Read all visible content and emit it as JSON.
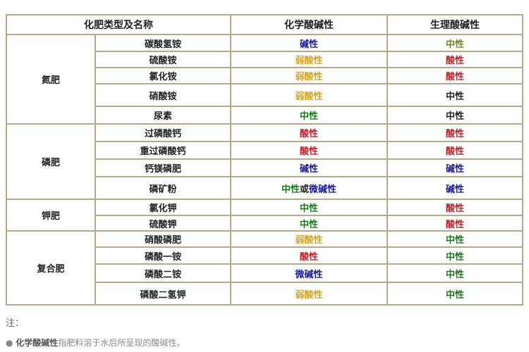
{
  "headers": [
    "化肥类型及名称",
    "化学酸碱性",
    "生理酸碱性"
  ],
  "groups": [
    {
      "category": "氮肥",
      "rows": [
        {
          "name": "碳酸氢铵",
          "chem": "碱性",
          "chem_color": "blue",
          "phys": "中性",
          "phys_color": "olive"
        },
        {
          "name": "硫酸铵",
          "chem": "弱酸性",
          "chem_color": "gold",
          "phys": "酸性",
          "phys_color": "red"
        },
        {
          "name": "氯化铵",
          "chem": "弱酸性",
          "chem_color": "gold",
          "phys": "酸性",
          "phys_color": "red"
        },
        {
          "name": "硝酸铵",
          "chem": "弱酸性",
          "chem_color": "gold",
          "phys": "中性",
          "phys_color": "black"
        },
        {
          "name": "尿素",
          "chem": "中性",
          "chem_color": "green",
          "phys": "中性",
          "phys_color": "black"
        }
      ]
    },
    {
      "category": "磷肥",
      "rows": [
        {
          "name": "过磷酸钙",
          "chem": "酸性",
          "chem_color": "red",
          "phys": "酸性",
          "phys_color": "red"
        },
        {
          "name": "重过磷酸钙",
          "chem": "酸性",
          "chem_color": "red",
          "phys": "酸性",
          "phys_color": "red"
        },
        {
          "name": "钙镁磷肥",
          "chem": "碱性",
          "chem_color": "blue",
          "phys": "碱性",
          "phys_color": "blue"
        },
        {
          "name": "磷矿粉",
          "chem": "中性",
          "chem_color": "green",
          "chem_suffix": "或",
          "chem_extra": "微碱性",
          "chem_extra_color": "blue",
          "phys": "碱性",
          "phys_color": "blue"
        }
      ]
    },
    {
      "category": "钾肥",
      "rows": [
        {
          "name": "氯化钾",
          "chem": "中性",
          "chem_color": "green",
          "phys": "酸性",
          "phys_color": "red"
        },
        {
          "name": "硫酸钾",
          "chem": "中性",
          "chem_color": "green",
          "phys": "酸性",
          "phys_color": "red"
        }
      ]
    },
    {
      "category": "复合肥",
      "rows": [
        {
          "name": "硝酸磷肥",
          "chem": "弱酸性",
          "chem_color": "gold",
          "phys": "中性",
          "phys_color": "green"
        },
        {
          "name": "磷酸一铵",
          "chem": "酸性",
          "chem_color": "red",
          "phys": "中性",
          "phys_color": "green"
        },
        {
          "name": "磷酸二铵",
          "chem": "微碱性",
          "chem_color": "blue",
          "phys": "中性",
          "phys_color": "green"
        },
        {
          "name": "磷酸二氢钾",
          "chem": "弱酸性",
          "chem_color": "gold",
          "phys": "中性",
          "phys_color": "green"
        }
      ]
    }
  ],
  "notes": {
    "title": "注：",
    "item_bold": "化学酸碱性",
    "item_rest": "指肥料溶于水后所呈现的酸碱性。"
  },
  "colors": {
    "blue": "#1a1a9a",
    "gold": "#d4a520",
    "red": "#c0202a",
    "green": "#1a7a1a",
    "olive": "#6a8a1a",
    "black": "#222222",
    "border": "#b8a888"
  }
}
